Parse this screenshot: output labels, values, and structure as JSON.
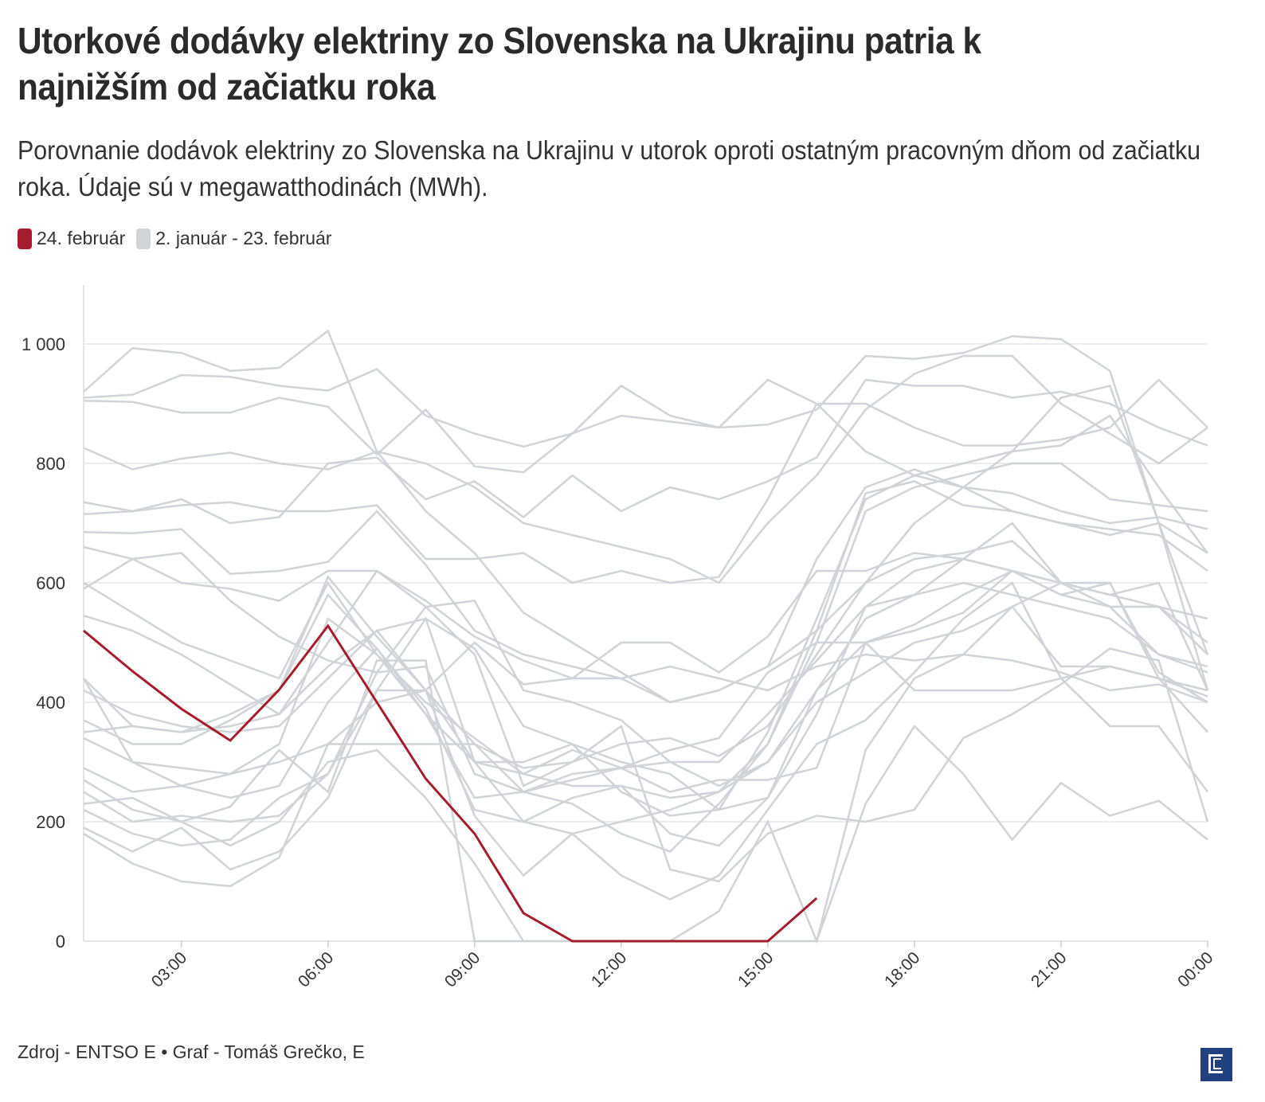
{
  "chart_data": {
    "type": "line",
    "title": "Utorkové dodávky elektriny zo Slovenska na Ukrajinu patria k najnižším od začiatku roka",
    "subtitle": "Porovnanie dodávok elektriny zo Slovenska na Ukrajinu v utorok oproti ostatným pracovným dňom od začiatku roka. Údaje sú v megawatthodinách (MWh).",
    "xlabel": "",
    "ylabel": "",
    "x_hours": [
      1,
      2,
      3,
      4,
      5,
      6,
      7,
      8,
      9,
      10,
      11,
      12,
      13,
      14,
      15,
      16,
      17,
      18,
      19,
      20,
      21,
      22,
      23,
      24
    ],
    "x_ticks": [
      {
        "hour": 3,
        "label": "03:00"
      },
      {
        "hour": 6,
        "label": "06:00"
      },
      {
        "hour": 9,
        "label": "09:00"
      },
      {
        "hour": 12,
        "label": "12:00"
      },
      {
        "hour": 15,
        "label": "15:00"
      },
      {
        "hour": 18,
        "label": "18:00"
      },
      {
        "hour": 21,
        "label": "21:00"
      },
      {
        "hour": 24,
        "label": "00:00"
      }
    ],
    "y_ticks": [
      {
        "value": 0,
        "label": "0"
      },
      {
        "value": 200,
        "label": "200"
      },
      {
        "value": 400,
        "label": "400"
      },
      {
        "value": 600,
        "label": "600"
      },
      {
        "value": 800,
        "label": "800"
      },
      {
        "value": 1000,
        "label": "1 000"
      }
    ],
    "ylim": [
      0,
      1100
    ],
    "grid": true,
    "legend": {
      "position": "top-left",
      "items": [
        {
          "label": "24. február",
          "color": "#a51d2d"
        },
        {
          "label": "2. január - 23. február",
          "color": "#d0d3d8"
        }
      ]
    },
    "highlight": {
      "name": "24. február",
      "color": "#a51d2d",
      "values": [
        520,
        452,
        389,
        336,
        421,
        528,
        400,
        272,
        180,
        47,
        0,
        0,
        0,
        0,
        0,
        72
      ]
    },
    "background_series_color": "#d0d3d8",
    "series": [
      [
        920,
        993,
        985,
        955,
        960,
        1022,
        820,
        720,
        650,
        550,
        500,
        450,
        400,
        420,
        460,
        520,
        600,
        700,
        760,
        820,
        830,
        880,
        760,
        650
      ],
      [
        910,
        915,
        948,
        945,
        930,
        922,
        958,
        880,
        850,
        828,
        850,
        930,
        880,
        860,
        865,
        890,
        980,
        975,
        985,
        1013,
        1008,
        955,
        700,
        480
      ],
      [
        905,
        903,
        885,
        885,
        910,
        895,
        815,
        890,
        795,
        785,
        850,
        880,
        870,
        860,
        940,
        900,
        820,
        780,
        800,
        820,
        910,
        930,
        700,
        420
      ],
      [
        826,
        790,
        808,
        818,
        800,
        790,
        820,
        800,
        760,
        700,
        680,
        660,
        640,
        600,
        700,
        780,
        890,
        950,
        980,
        980,
        900,
        850,
        800,
        860
      ],
      [
        735,
        720,
        740,
        700,
        710,
        800,
        810,
        740,
        770,
        710,
        780,
        720,
        760,
        740,
        770,
        810,
        940,
        930,
        930,
        910,
        920,
        900,
        860,
        830
      ],
      [
        715,
        720,
        730,
        735,
        720,
        720,
        730,
        640,
        640,
        650,
        600,
        620,
        600,
        610,
        740,
        900,
        900,
        860,
        830,
        830,
        840,
        860,
        940,
        860
      ],
      [
        685,
        683,
        690,
        615,
        620,
        635,
        720,
        630,
        520,
        480,
        460,
        440,
        400,
        420,
        460,
        640,
        760,
        790,
        760,
        720,
        700,
        680,
        700,
        650
      ],
      [
        660,
        640,
        600,
        590,
        570,
        620,
        620,
        570,
        510,
        470,
        440,
        500,
        500,
        450,
        510,
        620,
        620,
        650,
        640,
        620,
        600,
        560,
        560,
        540
      ],
      [
        590,
        640,
        650,
        570,
        510,
        470,
        450,
        560,
        570,
        420,
        400,
        370,
        300,
        260,
        300,
        420,
        500,
        530,
        580,
        620,
        580,
        560,
        480,
        460
      ],
      [
        600,
        550,
        500,
        470,
        440,
        600,
        480,
        400,
        340,
        280,
        260,
        260,
        240,
        250,
        300,
        400,
        450,
        500,
        520,
        560,
        600,
        560,
        560,
        480
      ],
      [
        545,
        520,
        480,
        430,
        380,
        460,
        520,
        540,
        490,
        360,
        330,
        300,
        280,
        220,
        240,
        420,
        540,
        580,
        600,
        580,
        560,
        540,
        480,
        450
      ],
      [
        440,
        360,
        350,
        360,
        380,
        500,
        620,
        560,
        480,
        260,
        300,
        330,
        340,
        310,
        360,
        480,
        600,
        640,
        650,
        670,
        600,
        580,
        560,
        500
      ],
      [
        420,
        380,
        360,
        350,
        360,
        440,
        520,
        420,
        330,
        250,
        280,
        290,
        300,
        300,
        380,
        470,
        560,
        620,
        640,
        620,
        600,
        580,
        600,
        420
      ],
      [
        370,
        330,
        330,
        370,
        420,
        610,
        510,
        420,
        300,
        300,
        330,
        250,
        210,
        220,
        350,
        540,
        740,
        780,
        760,
        750,
        720,
        700,
        710,
        690
      ],
      [
        350,
        360,
        350,
        380,
        420,
        580,
        490,
        380,
        300,
        200,
        180,
        200,
        220,
        250,
        330,
        520,
        750,
        770,
        730,
        720,
        700,
        690,
        680,
        620
      ],
      [
        340,
        300,
        290,
        280,
        330,
        540,
        480,
        380,
        240,
        250,
        230,
        180,
        150,
        230,
        330,
        500,
        720,
        760,
        780,
        800,
        800,
        740,
        730,
        720
      ],
      [
        290,
        250,
        260,
        240,
        260,
        400,
        490,
        390,
        220,
        200,
        240,
        260,
        180,
        160,
        240,
        380,
        560,
        580,
        640,
        700,
        600,
        600,
        440,
        410
      ],
      [
        270,
        220,
        200,
        160,
        200,
        300,
        320,
        240,
        130,
        0,
        0,
        0,
        0,
        50,
        200,
        0,
        230,
        360,
        280,
        170,
        265,
        210,
        235,
        170
      ],
      [
        250,
        200,
        210,
        200,
        210,
        280,
        420,
        420,
        210,
        110,
        180,
        110,
        70,
        110,
        220,
        330,
        370,
        450,
        540,
        600,
        440,
        360,
        360,
        250
      ],
      [
        230,
        240,
        200,
        225,
        320,
        250,
        470,
        470,
        0,
        0,
        0,
        0,
        0,
        0,
        0,
        0,
        320,
        440,
        480,
        560,
        460,
        460,
        440,
        420
      ],
      [
        220,
        180,
        160,
        170,
        240,
        280,
        450,
        460,
        280,
        250,
        270,
        290,
        250,
        270,
        270,
        290,
        500,
        520,
        550,
        620,
        580,
        600,
        450,
        400
      ],
      [
        190,
        150,
        190,
        120,
        150,
        240,
        420,
        540,
        300,
        280,
        320,
        290,
        320,
        340,
        450,
        500,
        500,
        420,
        420,
        420,
        440,
        460,
        440,
        350
      ],
      [
        180,
        130,
        100,
        92,
        140,
        330,
        330,
        330,
        330,
        290,
        300,
        360,
        120,
        100,
        180,
        210,
        200,
        220,
        340,
        380,
        430,
        490,
        470,
        200
      ],
      [
        440,
        300,
        260,
        280,
        300,
        330,
        400,
        420,
        500,
        430,
        440,
        440,
        460,
        440,
        420,
        460,
        480,
        470,
        480,
        470,
        450,
        420,
        430,
        400
      ]
    ]
  },
  "footer": {
    "source": "Zdroj - ENTSO E • Graf - Tomáš Grečko, E",
    "logo_text": "E"
  }
}
